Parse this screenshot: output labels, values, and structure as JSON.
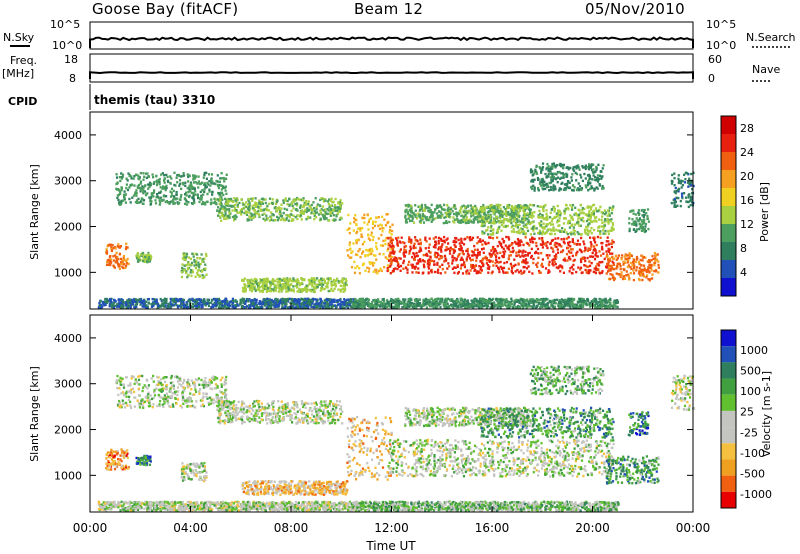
{
  "header": {
    "station": "Goose Bay (fitACF)",
    "beam": "Beam 12",
    "date": "05/Nov/2010"
  },
  "top_strip": {
    "nsky_label": "N.Sky",
    "nsky_ticks": [
      "10^5",
      "10^0"
    ],
    "nsearch_label": "N.Search",
    "nsearch_ticks": [
      "10^5",
      "10^0"
    ],
    "freq_label": "Freq.",
    "freq_unit": "[MHz]",
    "freq_ticks": [
      "18",
      "8"
    ],
    "nave_label": "Nave",
    "nave_ticks": [
      "60",
      "0"
    ],
    "cpid_label": "CPID",
    "cpid_value": "themis (tau) 3310"
  },
  "colors": {
    "power_scale": [
      "#1010d0",
      "#2050b8",
      "#2f7f5f",
      "#4d9f5f",
      "#a8d040",
      "#f0d020",
      "#f5a020",
      "#f06010",
      "#e82010",
      "#d00000"
    ],
    "velocity_scale": [
      "#e80000",
      "#f06010",
      "#f0a020",
      "#f5c040",
      "#c8c8c8",
      "#c8c8c8",
      "#60c030",
      "#40a040",
      "#2f7f5f",
      "#2050b8",
      "#1010d0"
    ],
    "gray_scatter": "#c4c4c0"
  },
  "chart_data": [
    {
      "type": "heatmap",
      "panel": "power",
      "ylabel": "Slant Range [km]",
      "yticks": [
        "1000",
        "2000",
        "3000",
        "4000"
      ],
      "ylim": [
        200,
        4500
      ],
      "xlim": [
        0,
        24
      ],
      "colorbar_label": "Power [dB]",
      "colorbar_ticks": [
        "4",
        "8",
        "12",
        "16",
        "20",
        "24",
        "28"
      ],
      "colorbar_range": [
        0,
        30
      ],
      "regions": [
        {
          "t0": 0.3,
          "t1": 10.8,
          "r0": 250,
          "r1": 450,
          "level": 6
        },
        {
          "t0": 0.6,
          "t1": 1.5,
          "r0": 1100,
          "r1": 1650,
          "level": 22
        },
        {
          "t0": 1.8,
          "t1": 2.4,
          "r0": 1250,
          "r1": 1450,
          "level": 12
        },
        {
          "t0": 1.0,
          "t1": 5.4,
          "r0": 2500,
          "r1": 3200,
          "level": 10
        },
        {
          "t0": 3.6,
          "t1": 4.6,
          "r0": 900,
          "r1": 1450,
          "level": 12
        },
        {
          "t0": 5.0,
          "t1": 10.0,
          "r0": 2150,
          "r1": 2650,
          "level": 12
        },
        {
          "t0": 6.0,
          "t1": 10.2,
          "r0": 600,
          "r1": 900,
          "level": 13
        },
        {
          "t0": 10.2,
          "t1": 12.0,
          "r0": 1000,
          "r1": 2300,
          "level": 18
        },
        {
          "t0": 11.8,
          "t1": 20.8,
          "r0": 1000,
          "r1": 1800,
          "level": 25
        },
        {
          "t0": 12.5,
          "t1": 17.5,
          "r0": 2100,
          "r1": 2500,
          "level": 11
        },
        {
          "t0": 15.5,
          "t1": 20.8,
          "r0": 1850,
          "r1": 2500,
          "level": 13
        },
        {
          "t0": 17.5,
          "t1": 20.4,
          "r0": 2800,
          "r1": 3400,
          "level": 8
        },
        {
          "t0": 20.5,
          "t1": 22.6,
          "r0": 850,
          "r1": 1450,
          "level": 22
        },
        {
          "t0": 21.4,
          "t1": 22.2,
          "r0": 1900,
          "r1": 2400,
          "level": 10
        },
        {
          "t0": 23.1,
          "t1": 24.0,
          "r0": 2450,
          "r1": 3200,
          "level": 7
        },
        {
          "t0": 10.4,
          "t1": 21.0,
          "r0": 250,
          "r1": 450,
          "level": 9
        }
      ]
    },
    {
      "type": "heatmap",
      "panel": "velocity",
      "ylabel": "Slant Range [km]",
      "yticks": [
        "1000",
        "2000",
        "3000",
        "4000"
      ],
      "ylim": [
        200,
        4500
      ],
      "xlim": [
        0,
        24
      ],
      "xticks": [
        "00:00",
        "04:00",
        "08:00",
        "12:00",
        "16:00",
        "20:00",
        "00:00"
      ],
      "xlabel": "Time UT",
      "colorbar_label": "Velocity [m s-1]",
      "colorbar_ticks": [
        "1000",
        "500",
        "100",
        "25",
        "-25",
        "-100",
        "-500",
        "-1000"
      ],
      "regions": [
        {
          "t0": 0.3,
          "t1": 10.8,
          "r0": 250,
          "r1": 450,
          "level": 5
        },
        {
          "t0": 0.6,
          "t1": 1.5,
          "r0": 1150,
          "r1": 1600,
          "level": 2
        },
        {
          "t0": 1.8,
          "t1": 2.4,
          "r0": 1250,
          "r1": 1450,
          "level": 8
        },
        {
          "t0": 1.0,
          "t1": 5.4,
          "r0": 2500,
          "r1": 3200,
          "level": 5
        },
        {
          "t0": 3.6,
          "t1": 4.6,
          "r0": 900,
          "r1": 1300,
          "level": 5
        },
        {
          "t0": 5.0,
          "t1": 10.0,
          "r0": 2150,
          "r1": 2650,
          "level": 5
        },
        {
          "t0": 6.0,
          "t1": 10.2,
          "r0": 600,
          "r1": 900,
          "level": 3
        },
        {
          "t0": 10.2,
          "t1": 12.0,
          "r0": 900,
          "r1": 2300,
          "level": 3
        },
        {
          "t0": 11.8,
          "t1": 20.8,
          "r0": 1000,
          "r1": 1800,
          "level": 5
        },
        {
          "t0": 12.5,
          "t1": 17.5,
          "r0": 2100,
          "r1": 2500,
          "level": 5
        },
        {
          "t0": 15.5,
          "t1": 20.8,
          "r0": 1850,
          "r1": 2500,
          "level": 7
        },
        {
          "t0": 17.5,
          "t1": 20.4,
          "r0": 2800,
          "r1": 3400,
          "level": 6
        },
        {
          "t0": 20.5,
          "t1": 22.6,
          "r0": 850,
          "r1": 1450,
          "level": 7
        },
        {
          "t0": 21.4,
          "t1": 22.2,
          "r0": 1900,
          "r1": 2400,
          "level": 8
        },
        {
          "t0": 23.1,
          "t1": 24.0,
          "r0": 2450,
          "r1": 3200,
          "level": 5
        },
        {
          "t0": 10.4,
          "t1": 21.0,
          "r0": 250,
          "r1": 450,
          "level": 6
        }
      ]
    }
  ]
}
